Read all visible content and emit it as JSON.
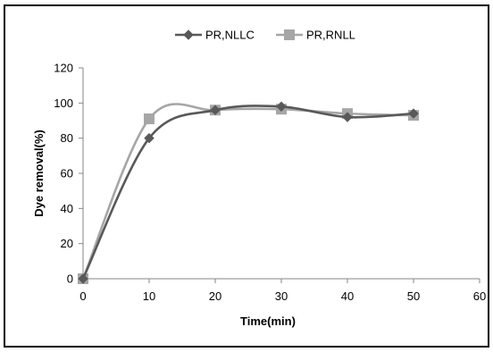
{
  "chart_data": {
    "type": "line",
    "xlabel": "Time(min)",
    "ylabel": "Dye removal(%)",
    "xlim": [
      0,
      60
    ],
    "ylim": [
      0,
      120
    ],
    "xticks": [
      0,
      10,
      20,
      30,
      40,
      50,
      60
    ],
    "yticks": [
      0,
      20,
      40,
      60,
      80,
      100,
      120
    ],
    "grid": false,
    "legend_position": "top",
    "smooth": true,
    "x": [
      0,
      10,
      20,
      30,
      40,
      50
    ],
    "series": [
      {
        "name": "PR,NLLC",
        "values": [
          0,
          80,
          96,
          98,
          92,
          94
        ],
        "marker": "diamond",
        "color": "#595959"
      },
      {
        "name": "PR,RNLL",
        "values": [
          0,
          91,
          96,
          96.5,
          94,
          93
        ],
        "marker": "square",
        "color": "#a6a6a6"
      }
    ]
  }
}
